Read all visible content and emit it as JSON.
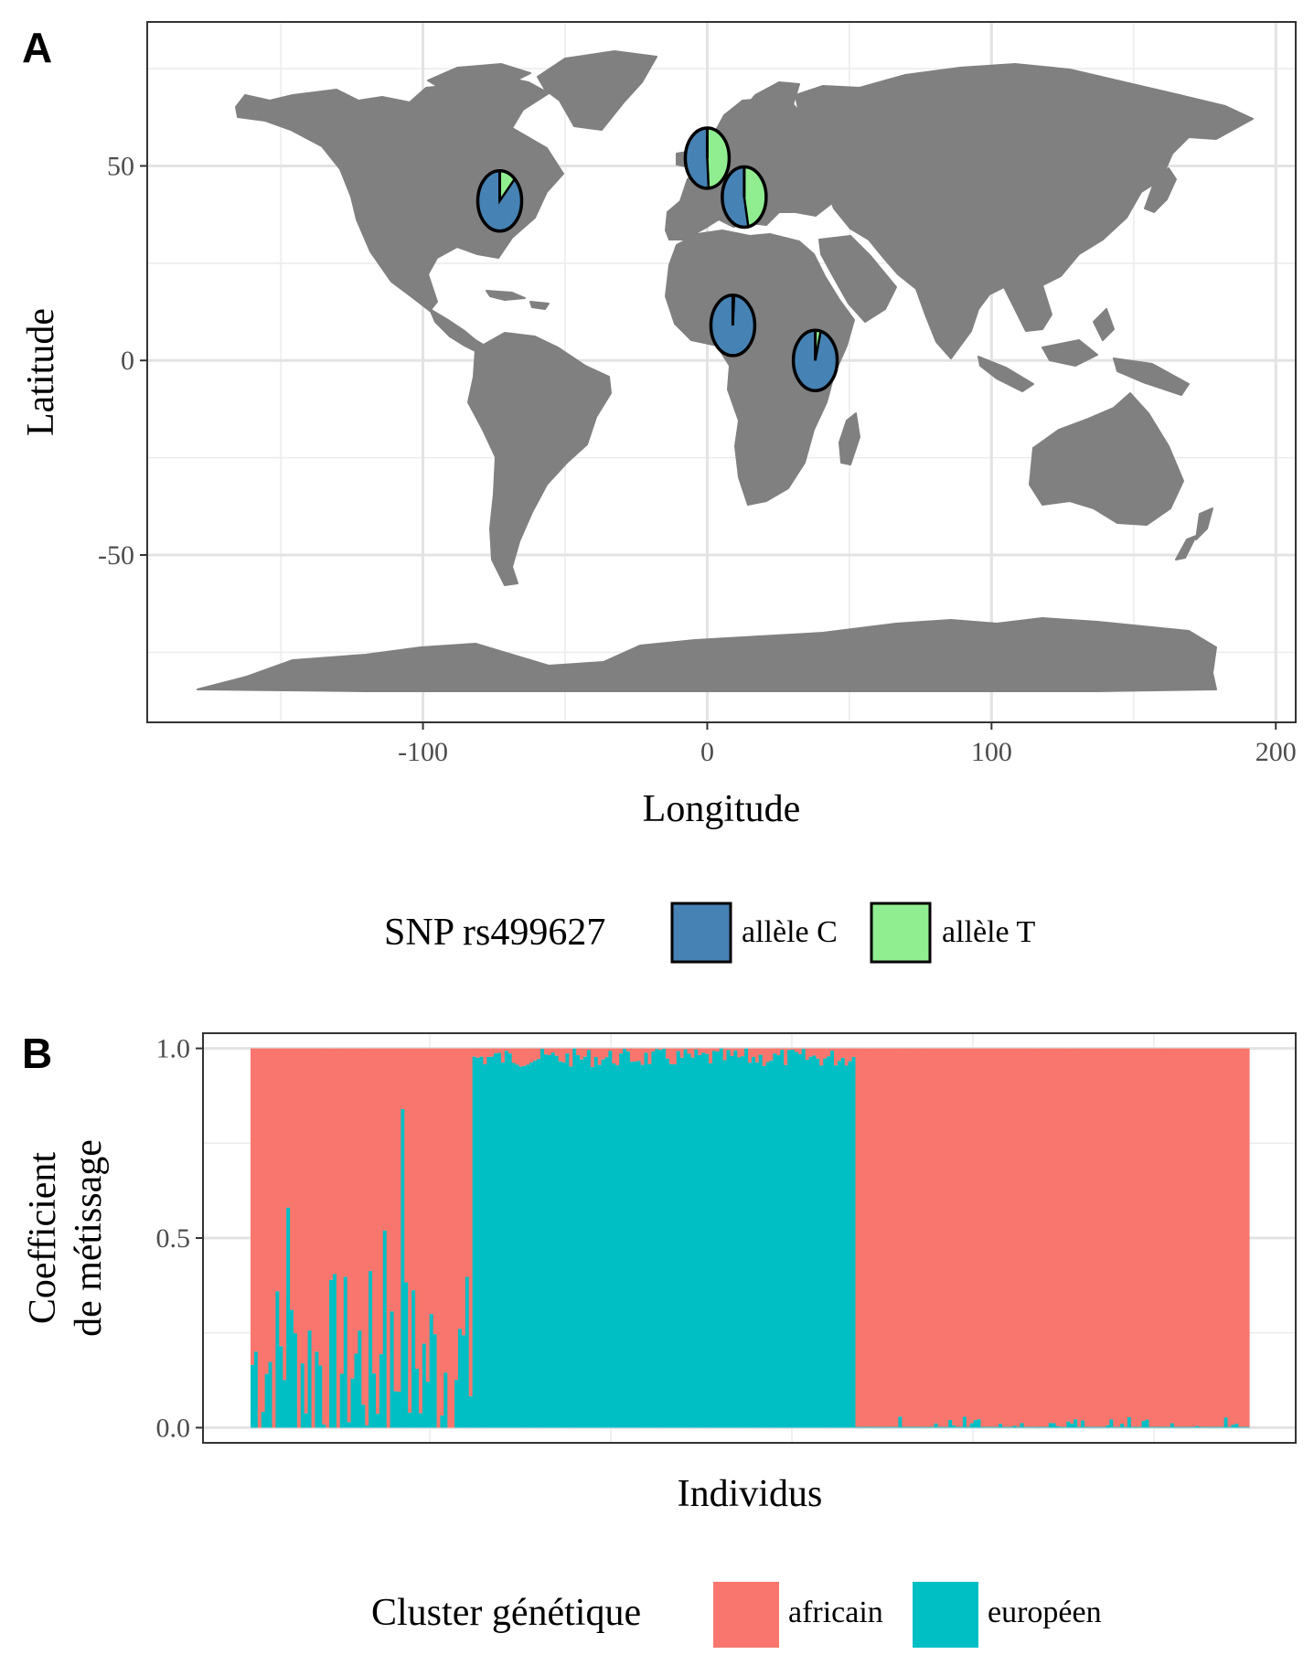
{
  "chart_data": [
    {
      "panel": "A",
      "type": "scatter",
      "xlabel": "Longitude",
      "ylabel": "Latitude",
      "xlim": [
        -197,
        207
      ],
      "ylim": [
        -93,
        87
      ],
      "xticks": [
        "-100",
        "0",
        "100",
        "200"
      ],
      "xtick_values": [
        -100,
        0,
        100,
        200
      ],
      "yticks": [
        "-50",
        "0",
        "50"
      ],
      "ytick_values": [
        -50,
        0,
        50
      ],
      "grid": true,
      "legend": {
        "title": "SNP rs499627",
        "position": "bottom",
        "entries": [
          {
            "label": "allèle C",
            "color": "#4682B4"
          },
          {
            "label": "allèle T",
            "color": "#90EE90"
          }
        ]
      },
      "pies": [
        {
          "lon": -73,
          "lat": 41,
          "allele_C": 0.88,
          "allele_T": 0.12
        },
        {
          "lon": 0,
          "lat": 52,
          "allele_C": 0.51,
          "allele_T": 0.49
        },
        {
          "lon": 13,
          "lat": 42,
          "allele_C": 0.53,
          "allele_T": 0.47
        },
        {
          "lon": 9,
          "lat": 9,
          "allele_C": 0.99,
          "allele_T": 0.01
        },
        {
          "lon": 38,
          "lat": 0,
          "allele_C": 0.96,
          "allele_T": 0.04
        }
      ],
      "map_color": "#808080"
    },
    {
      "panel": "B",
      "type": "bar",
      "stacked": true,
      "xlabel": "Individus",
      "ylabel_lines": [
        "Coefficient",
        "de métissage"
      ],
      "ylim": [
        -0.04,
        1.04
      ],
      "yticks": [
        "0.0",
        "0.5",
        "1.0"
      ],
      "ytick_values": [
        0,
        0.5,
        1
      ],
      "grid": true,
      "legend": {
        "title": "Cluster génétique",
        "position": "bottom",
        "entries": [
          {
            "label": "africain",
            "color": "#F8766D"
          },
          {
            "label": "européen",
            "color": "#00BFC4"
          }
        ]
      },
      "groups": [
        {
          "individuals": 62,
          "european_mean": 0.17,
          "european_min": 0.0,
          "european_max": 0.84
        },
        {
          "individuals": 107,
          "european_mean": 0.985,
          "european_min": 0.95,
          "european_max": 1.0
        },
        {
          "individuals": 110,
          "european_mean": 0.004,
          "european_min": 0.0,
          "european_max": 0.03
        }
      ]
    }
  ]
}
